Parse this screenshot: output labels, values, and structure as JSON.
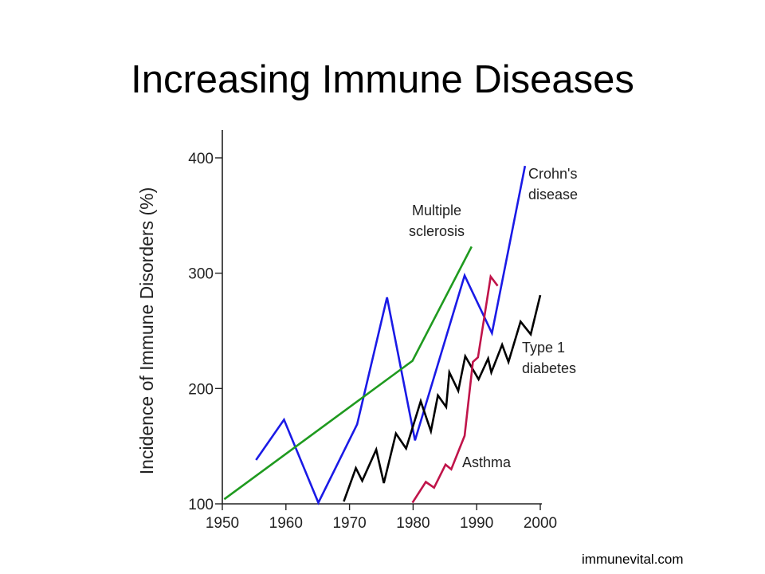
{
  "title": "Increasing Immune Diseases",
  "footer": "immunevital.com",
  "chart_data": {
    "type": "line",
    "title": "Increasing Immune Diseases",
    "xlabel": "",
    "ylabel": "Incidence of Immune Disorders (%)",
    "xlim": [
      1950,
      2000
    ],
    "ylim": [
      100,
      400
    ],
    "xticks": [
      "1950",
      "1960",
      "1970",
      "1980",
      "1990",
      "2000"
    ],
    "yticks": [
      "100",
      "200",
      "300",
      "400"
    ],
    "grid": false,
    "series": [
      {
        "name": "Crohn's disease",
        "label_lines": [
          "Crohn's",
          "disease"
        ],
        "color": "#1a1ae6",
        "points": [
          [
            1955.3,
            138
          ],
          [
            1959.7,
            173
          ],
          [
            1965.1,
            101
          ],
          [
            1971.2,
            169
          ],
          [
            1975.9,
            279
          ],
          [
            1980.3,
            155
          ],
          [
            1988.1,
            298
          ],
          [
            1992.4,
            248
          ],
          [
            1997.6,
            393
          ]
        ]
      },
      {
        "name": "Multiple sclerosis",
        "label_lines": [
          "Multiple",
          "sclerosis"
        ],
        "color": "#1f9a1f",
        "points": [
          [
            1950.3,
            104
          ],
          [
            1979.9,
            224
          ],
          [
            1989.2,
            323
          ]
        ]
      },
      {
        "name": "Type 1 diabetes",
        "label_lines": [
          "Type 1",
          "diabetes"
        ],
        "color": "#000000",
        "points": [
          [
            1969.1,
            102
          ],
          [
            1971,
            131
          ],
          [
            1972,
            120
          ],
          [
            1974.2,
            147
          ],
          [
            1975.4,
            118
          ],
          [
            1977.3,
            161
          ],
          [
            1978.9,
            148
          ],
          [
            1981.2,
            189
          ],
          [
            1982.8,
            163
          ],
          [
            1983.9,
            194
          ],
          [
            1985.2,
            184
          ],
          [
            1985.7,
            214
          ],
          [
            1987.1,
            198
          ],
          [
            1988.2,
            228
          ],
          [
            1990.3,
            208
          ],
          [
            1991.8,
            226
          ],
          [
            1992.3,
            214
          ],
          [
            1994,
            238
          ],
          [
            1995,
            223
          ],
          [
            1996.9,
            258
          ],
          [
            1998.5,
            247
          ],
          [
            2000,
            281
          ]
        ]
      },
      {
        "name": "Asthma",
        "label_lines": [
          "Asthma"
        ],
        "color": "#c0144a",
        "points": [
          [
            1979.9,
            101
          ],
          [
            1982,
            119
          ],
          [
            1983.3,
            114
          ],
          [
            1985.1,
            134
          ],
          [
            1986,
            130
          ],
          [
            1988.1,
            159
          ],
          [
            1989.4,
            223
          ],
          [
            1990.2,
            227
          ],
          [
            1992.2,
            297
          ],
          [
            1993.3,
            289
          ]
        ]
      }
    ]
  }
}
